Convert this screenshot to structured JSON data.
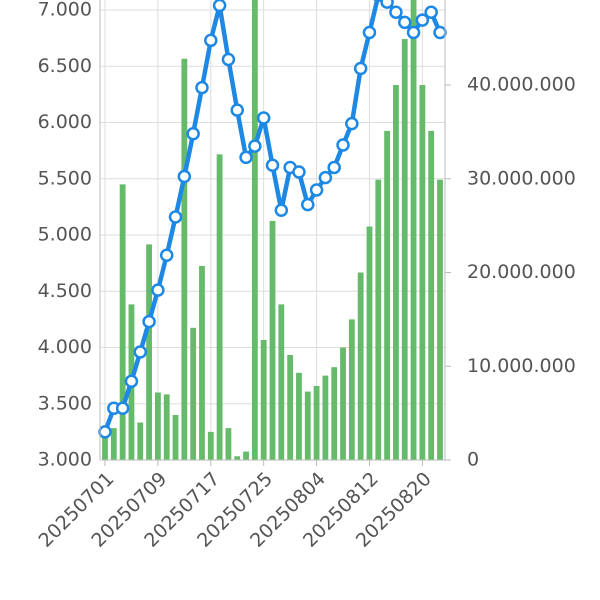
{
  "chart_data": {
    "type": "combo",
    "categories": [
      "20250701",
      null,
      null,
      null,
      null,
      null,
      "20250709",
      null,
      null,
      null,
      null,
      null,
      "20250717",
      null,
      null,
      null,
      null,
      null,
      "20250725",
      null,
      null,
      null,
      null,
      null,
      "20250804",
      null,
      null,
      null,
      null,
      null,
      "20250812",
      null,
      null,
      null,
      null,
      null,
      "20250820",
      null,
      null
    ],
    "series": [
      {
        "type": "bar",
        "axis": "y2",
        "color": "#66bb6a",
        "values": [
          3200000,
          3400000,
          29400000,
          16600000,
          4000000,
          23000000,
          7200000,
          7000000,
          4800000,
          42800000,
          14100000,
          20700000,
          3000000,
          32600000,
          3400000,
          400000,
          900000,
          49500000,
          12800000,
          25500000,
          16600000,
          11200000,
          9300000,
          7300000,
          7900000,
          9000000,
          9900000,
          12000000,
          15000000,
          20000000,
          24900000,
          29900000,
          35100000,
          40000000,
          44900000,
          49500000,
          40000000,
          35100000,
          29900000
        ]
      },
      {
        "type": "line",
        "axis": "y",
        "color": "#1e88e5",
        "values": [
          3.25,
          3.46,
          3.46,
          3.7,
          3.96,
          4.23,
          4.51,
          4.82,
          5.16,
          5.52,
          5.9,
          6.31,
          6.73,
          7.04,
          6.56,
          6.11,
          5.69,
          5.79,
          6.04,
          5.62,
          5.22,
          5.6,
          5.56,
          5.27,
          5.4,
          5.51,
          5.6,
          5.8,
          5.99,
          6.48,
          6.8,
          7.13,
          7.07,
          6.98,
          6.89,
          6.8,
          6.91,
          6.98,
          6.8
        ]
      }
    ],
    "ylim": [
      3,
      7
    ],
    "yticks": [
      {
        "value": 3,
        "label": "3.000"
      },
      {
        "value": 3.5,
        "label": "3.500"
      },
      {
        "value": 4,
        "label": "4.000"
      },
      {
        "value": 4.5,
        "label": "4.500"
      },
      {
        "value": 5,
        "label": "5.000"
      },
      {
        "value": 5.5,
        "label": "5.500"
      },
      {
        "value": 6,
        "label": "6.000"
      },
      {
        "value": 6.5,
        "label": "6.500"
      },
      {
        "value": 7,
        "label": "7.000"
      }
    ],
    "y2lim": [
      0,
      48000000
    ],
    "y2ticks": [
      0,
      {
        "value": 10000000,
        "label": "10.000.000"
      },
      {
        "value": 20000000,
        "label": "20.000.000"
      },
      {
        "value": 30000000,
        "label": "30.000.000"
      },
      {
        "value": 40000000,
        "label": "40.000.000"
      }
    ],
    "grid": true
  }
}
